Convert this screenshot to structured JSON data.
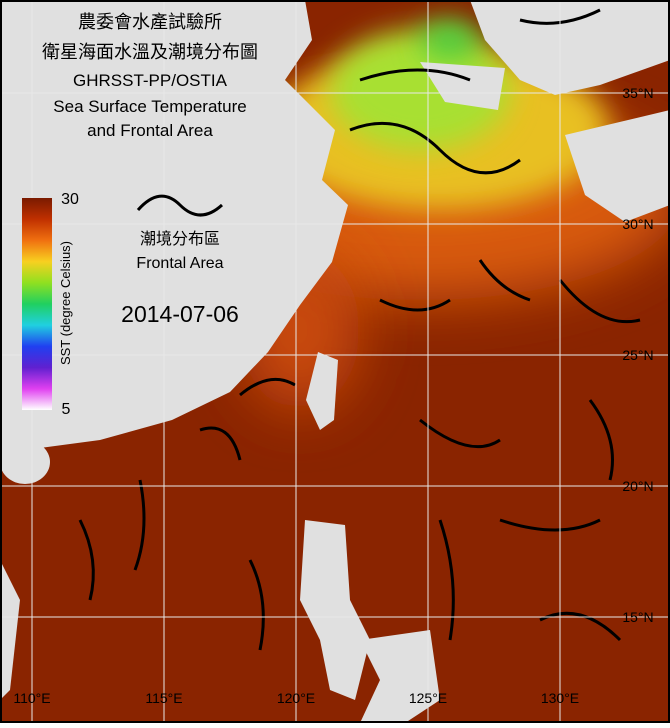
{
  "header": {
    "lines": [
      "農委會水產試驗所",
      "衛星海面水溫及潮境分布圖",
      "GHRSST-PP/OSTIA",
      "Sea Surface Temperature",
      "and Frontal Area"
    ]
  },
  "colorbar": {
    "max": 30,
    "min": 5,
    "label": "SST (degree Celsius)"
  },
  "legend": {
    "labels": [
      "潮境分布區",
      "Frontal Area"
    ]
  },
  "date": "2014-07-06",
  "grid": {
    "longitudes": [
      "110°E",
      "115°E",
      "120°E",
      "125°E",
      "130°E"
    ],
    "latitudes": [
      "35°N",
      "30°N",
      "25°N",
      "20°N",
      "15°N"
    ]
  }
}
